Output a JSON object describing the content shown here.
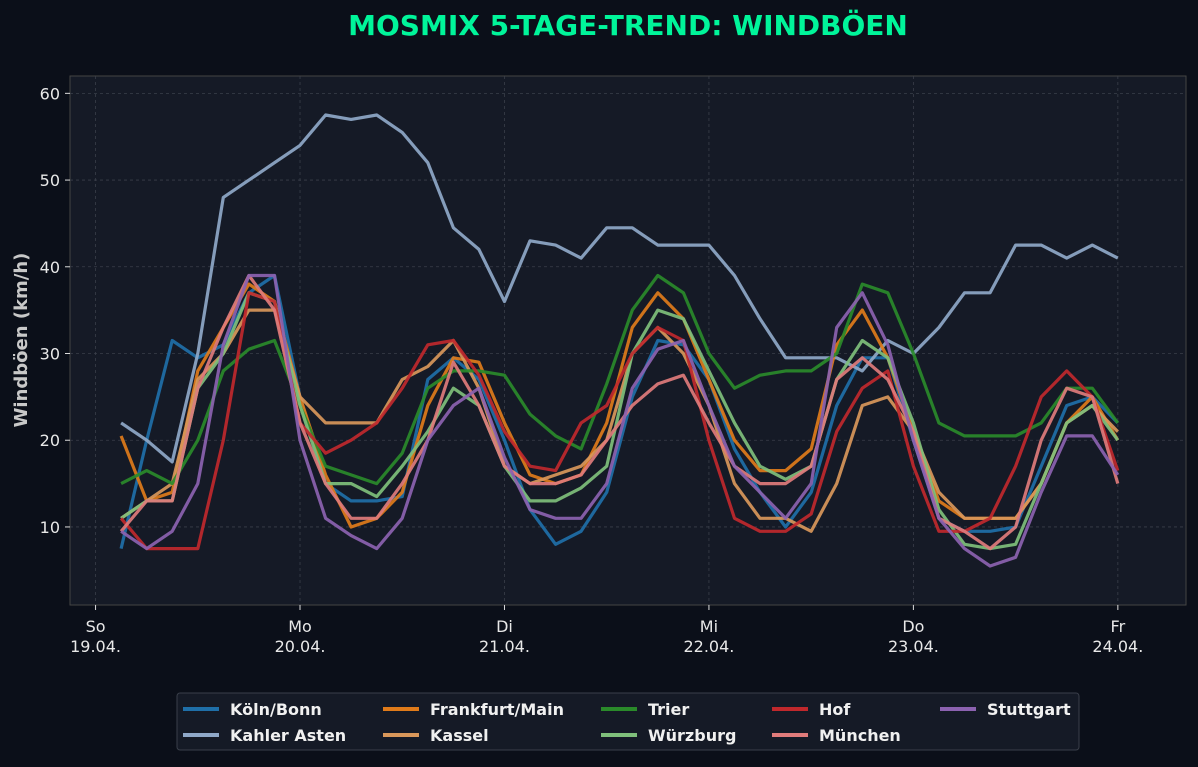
{
  "chart_data": {
    "type": "line",
    "title": "MOSMIX 5-TAGE-TREND: WINDBÖEN",
    "xlabel": "",
    "ylabel": "Windböen (km/h)",
    "ylim": [
      1,
      62
    ],
    "xlim": [
      "18.04. 21:00",
      "24.04. 08:00"
    ],
    "grid": true,
    "legend_placement": "bottom-center",
    "yticks": [
      10,
      20,
      30,
      40,
      50,
      60
    ],
    "xticks": [
      {
        "day": "So",
        "date": "19.04.",
        "at": "19.04. 00:00"
      },
      {
        "day": "Mo",
        "date": "20.04.",
        "at": "20.04. 00:00"
      },
      {
        "day": "Di",
        "date": "21.04.",
        "at": "21.04. 00:00"
      },
      {
        "day": "Mi",
        "date": "22.04.",
        "at": "22.04. 00:00"
      },
      {
        "day": "Do",
        "date": "23.04.",
        "at": "23.04. 00:00"
      },
      {
        "day": "Fr",
        "date": "24.04.",
        "at": "24.04. 00:00"
      }
    ],
    "x": [
      "19.04. 03:00",
      "19.04. 06:00",
      "19.04. 09:00",
      "19.04. 12:00",
      "19.04. 15:00",
      "19.04. 18:00",
      "19.04. 21:00",
      "20.04. 00:00",
      "20.04. 03:00",
      "20.04. 06:00",
      "20.04. 09:00",
      "20.04. 12:00",
      "20.04. 15:00",
      "20.04. 18:00",
      "20.04. 21:00",
      "21.04. 00:00",
      "21.04. 03:00",
      "21.04. 06:00",
      "21.04. 09:00",
      "21.04. 12:00",
      "21.04. 15:00",
      "21.04. 18:00",
      "21.04. 21:00",
      "22.04. 00:00",
      "22.04. 03:00",
      "22.04. 06:00",
      "22.04. 09:00",
      "22.04. 12:00",
      "22.04. 15:00",
      "22.04. 18:00",
      "22.04. 21:00",
      "23.04. 00:00",
      "23.04. 03:00",
      "23.04. 06:00",
      "23.04. 09:00",
      "23.04. 12:00",
      "23.04. 15:00",
      "23.04. 18:00",
      "23.04. 21:00",
      "24.04. 00:00"
    ],
    "series": [
      {
        "name": "Köln/Bonn",
        "color": "#1f6fa8",
        "values": [
          7.5,
          20,
          31.5,
          29.5,
          31,
          37,
          39,
          25,
          15,
          13,
          13,
          13.5,
          27,
          29.5,
          27,
          20,
          12,
          8,
          9.5,
          14,
          25,
          31.5,
          31,
          27,
          19,
          14,
          10,
          14,
          24,
          29.5,
          29.5,
          20,
          11,
          9.5,
          9.5,
          10,
          17,
          24,
          25,
          22
        ]
      },
      {
        "name": "Kahler Asten",
        "color": "#8fa8c8",
        "values": [
          22,
          20,
          17.5,
          30,
          48,
          50,
          52,
          54,
          57.5,
          57,
          57.5,
          55.5,
          52,
          44.5,
          42,
          36,
          43,
          42.5,
          41,
          44.5,
          44.5,
          42.5,
          42.5,
          42.5,
          39,
          34,
          29.5,
          29.5,
          29.5,
          28,
          31.5,
          30,
          33,
          37,
          37,
          42.5,
          42.5,
          41,
          42.5,
          41
        ]
      },
      {
        "name": "Frankfurt/Main",
        "color": "#e07b1a",
        "values": [
          20.5,
          13,
          14,
          28,
          33,
          38,
          36,
          25,
          16,
          10,
          11,
          14,
          24,
          29.5,
          29,
          22,
          16,
          15,
          16,
          22,
          33,
          37,
          34,
          27,
          20,
          16.5,
          16.5,
          19,
          31,
          35,
          29.5,
          21,
          13,
          11,
          11,
          11,
          15,
          22,
          25,
          20
        ]
      },
      {
        "name": "Kassel",
        "color": "#d9975a",
        "values": [
          11,
          13,
          15,
          27,
          30,
          35,
          35,
          25,
          22,
          22,
          22,
          27,
          28.5,
          31.5,
          26,
          17,
          15,
          16,
          17,
          20,
          30,
          33,
          30,
          24,
          15,
          11,
          11,
          9.5,
          15,
          24,
          25,
          21,
          14,
          11,
          11,
          11,
          15,
          22,
          24,
          21
        ]
      },
      {
        "name": "Trier",
        "color": "#2a8a2a",
        "values": [
          15,
          16.5,
          15,
          20,
          28,
          30.5,
          31.5,
          24,
          17,
          16,
          15,
          18.5,
          26,
          28,
          28,
          27.5,
          23,
          20.5,
          19,
          26.5,
          35,
          39,
          37,
          30,
          26,
          27.5,
          28,
          28,
          30,
          38,
          37,
          30,
          22,
          20.5,
          20.5,
          20.5,
          22,
          26,
          26,
          22
        ]
      },
      {
        "name": "Würzburg",
        "color": "#7fbf7b",
        "values": [
          11,
          13,
          13,
          26,
          30,
          37,
          36,
          24,
          15,
          15,
          13.5,
          17,
          21,
          26,
          24,
          17,
          13,
          13,
          14.5,
          17,
          30,
          35,
          34,
          28,
          22,
          17,
          15.5,
          17,
          27,
          31.5,
          29.5,
          22,
          12,
          8,
          7.5,
          8,
          15,
          22,
          24,
          20
        ]
      },
      {
        "name": "Hof",
        "color": "#c0282c",
        "values": [
          11,
          7.5,
          7.5,
          7.5,
          20,
          37,
          36,
          22,
          18.5,
          20,
          22,
          26,
          31,
          31.5,
          27.5,
          21,
          17,
          16.5,
          22,
          24,
          30,
          33,
          31.5,
          20,
          11,
          9.5,
          9.5,
          11.5,
          21,
          26,
          28,
          17,
          9.5,
          9.5,
          11,
          17,
          25,
          28,
          25,
          16.5
        ]
      },
      {
        "name": "München",
        "color": "#e07b7b",
        "values": [
          9.5,
          13,
          13,
          26,
          33,
          39,
          35,
          22,
          15,
          11,
          11,
          15,
          20,
          29,
          24,
          17,
          15,
          15,
          16,
          20,
          24,
          26.5,
          27.5,
          22,
          17,
          15,
          15,
          17,
          27,
          29.5,
          27,
          21,
          11,
          9.5,
          7.5,
          10,
          20,
          26,
          25,
          15
        ]
      },
      {
        "name": "Stuttgart",
        "color": "#8c62b0",
        "values": [
          9.5,
          7.5,
          9.5,
          15,
          31,
          39,
          39,
          20,
          11,
          9,
          7.5,
          11,
          20,
          24,
          26,
          18,
          12,
          11,
          11,
          15,
          26,
          30.5,
          31.5,
          24,
          17,
          14,
          11,
          15,
          33,
          37,
          31,
          20,
          11,
          7.5,
          5.5,
          6.5,
          14,
          20.5,
          20.5,
          16
        ]
      }
    ]
  },
  "colors": {
    "background": "#0b0f19",
    "plot_background": "#151a26",
    "title": "#00f59a",
    "text": "#e8e8e8"
  }
}
